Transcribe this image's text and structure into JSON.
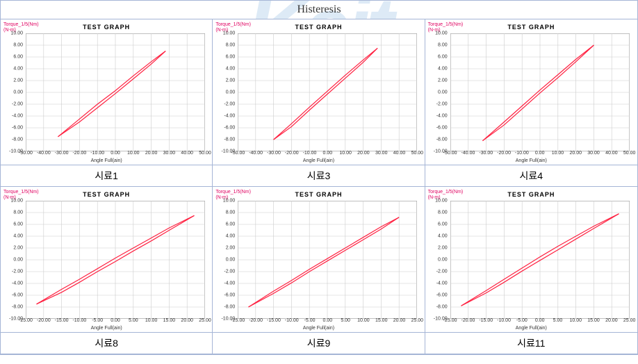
{
  "watermark": "Keit",
  "title": "Histeresis",
  "chart_common": {
    "chart_title": "TEST  GRAPH",
    "yaxis_label_line1": "Torque_1/5(Nm)",
    "yaxis_label_line2": "(N-m)",
    "xaxis_label": "Angle Full(ain)",
    "grid_color": "#cccccc",
    "border_color": "#333333",
    "line_color": "#ff2040",
    "line_width": 1.2,
    "background_color": "#ffffff"
  },
  "charts": [
    {
      "label": "시료1",
      "type": "line",
      "xlim": [
        -50,
        50
      ],
      "xtick_step": 10,
      "ylim": [
        -10,
        10
      ],
      "ytick_step": 2,
      "series_up": [
        [
          -32,
          -7.5
        ],
        [
          -20,
          -4.5
        ],
        [
          -10,
          -2.0
        ],
        [
          0,
          0.3
        ],
        [
          10,
          2.8
        ],
        [
          20,
          5.2
        ],
        [
          28,
          7.0
        ]
      ],
      "series_down": [
        [
          28,
          7.0
        ],
        [
          20,
          4.8
        ],
        [
          10,
          2.3
        ],
        [
          0,
          -0.2
        ],
        [
          -10,
          -2.6
        ],
        [
          -20,
          -5.0
        ],
        [
          -32,
          -7.5
        ]
      ]
    },
    {
      "label": "시료3",
      "type": "line",
      "xlim": [
        -50,
        50
      ],
      "xtick_step": 10,
      "ylim": [
        -10,
        10
      ],
      "ytick_step": 2,
      "series_up": [
        [
          -30,
          -8.0
        ],
        [
          -20,
          -5.3
        ],
        [
          -10,
          -2.5
        ],
        [
          0,
          0.2
        ],
        [
          10,
          2.9
        ],
        [
          20,
          5.5
        ],
        [
          28,
          7.5
        ]
      ],
      "series_down": [
        [
          28,
          7.5
        ],
        [
          20,
          5.1
        ],
        [
          10,
          2.4
        ],
        [
          0,
          -0.3
        ],
        [
          -10,
          -3.0
        ],
        [
          -20,
          -5.8
        ],
        [
          -30,
          -8.0
        ]
      ]
    },
    {
      "label": "시료4",
      "type": "line",
      "xlim": [
        -50,
        50
      ],
      "xtick_step": 10,
      "ylim": [
        -10,
        10
      ],
      "ytick_step": 2,
      "series_up": [
        [
          -32,
          -8.2
        ],
        [
          -20,
          -5.0
        ],
        [
          -10,
          -2.3
        ],
        [
          0,
          0.4
        ],
        [
          10,
          3.0
        ],
        [
          20,
          5.6
        ],
        [
          30,
          8.0
        ]
      ],
      "series_down": [
        [
          30,
          8.0
        ],
        [
          20,
          5.2
        ],
        [
          10,
          2.5
        ],
        [
          0,
          -0.1
        ],
        [
          -10,
          -2.8
        ],
        [
          -20,
          -5.5
        ],
        [
          -32,
          -8.2
        ]
      ]
    },
    {
      "label": "시료8",
      "type": "line",
      "xlim": [
        -25,
        25
      ],
      "xtick_step": 5,
      "ylim": [
        -10,
        10
      ],
      "ytick_step": 2,
      "series_up": [
        [
          -22,
          -7.5
        ],
        [
          -15,
          -5.0
        ],
        [
          -10,
          -3.3
        ],
        [
          -5,
          -1.5
        ],
        [
          0,
          0.3
        ],
        [
          5,
          2.0
        ],
        [
          10,
          3.7
        ],
        [
          15,
          5.4
        ],
        [
          22,
          7.5
        ]
      ],
      "series_down": [
        [
          22,
          7.5
        ],
        [
          15,
          5.0
        ],
        [
          10,
          3.2
        ],
        [
          5,
          1.5
        ],
        [
          0,
          -0.3
        ],
        [
          -5,
          -2.0
        ],
        [
          -10,
          -3.8
        ],
        [
          -15,
          -5.5
        ],
        [
          -22,
          -7.5
        ]
      ]
    },
    {
      "label": "시료9",
      "type": "line",
      "xlim": [
        -25,
        25
      ],
      "xtick_step": 5,
      "ylim": [
        -10,
        10
      ],
      "ytick_step": 2,
      "series_up": [
        [
          -22,
          -8.0
        ],
        [
          -15,
          -5.3
        ],
        [
          -10,
          -3.5
        ],
        [
          -5,
          -1.6
        ],
        [
          0,
          0.2
        ],
        [
          5,
          2.0
        ],
        [
          10,
          3.8
        ],
        [
          15,
          5.6
        ],
        [
          20,
          7.2
        ]
      ],
      "series_down": [
        [
          20,
          7.2
        ],
        [
          15,
          5.2
        ],
        [
          10,
          3.4
        ],
        [
          5,
          1.6
        ],
        [
          0,
          -0.2
        ],
        [
          -5,
          -2.0
        ],
        [
          -10,
          -3.9
        ],
        [
          -15,
          -5.7
        ],
        [
          -22,
          -8.0
        ]
      ]
    },
    {
      "label": "시료11",
      "type": "line",
      "xlim": [
        -25,
        25
      ],
      "xtick_step": 5,
      "ylim": [
        -10,
        10
      ],
      "ytick_step": 2,
      "series_up": [
        [
          -22,
          -7.8
        ],
        [
          -15,
          -5.2
        ],
        [
          -10,
          -3.3
        ],
        [
          -5,
          -1.4
        ],
        [
          0,
          0.5
        ],
        [
          5,
          2.3
        ],
        [
          10,
          4.0
        ],
        [
          15,
          5.7
        ],
        [
          22,
          7.8
        ]
      ],
      "series_down": [
        [
          22,
          7.8
        ],
        [
          15,
          5.3
        ],
        [
          10,
          3.5
        ],
        [
          5,
          1.7
        ],
        [
          0,
          -0.1
        ],
        [
          -5,
          -1.9
        ],
        [
          -10,
          -3.8
        ],
        [
          -15,
          -5.6
        ],
        [
          -22,
          -7.8
        ]
      ]
    }
  ]
}
